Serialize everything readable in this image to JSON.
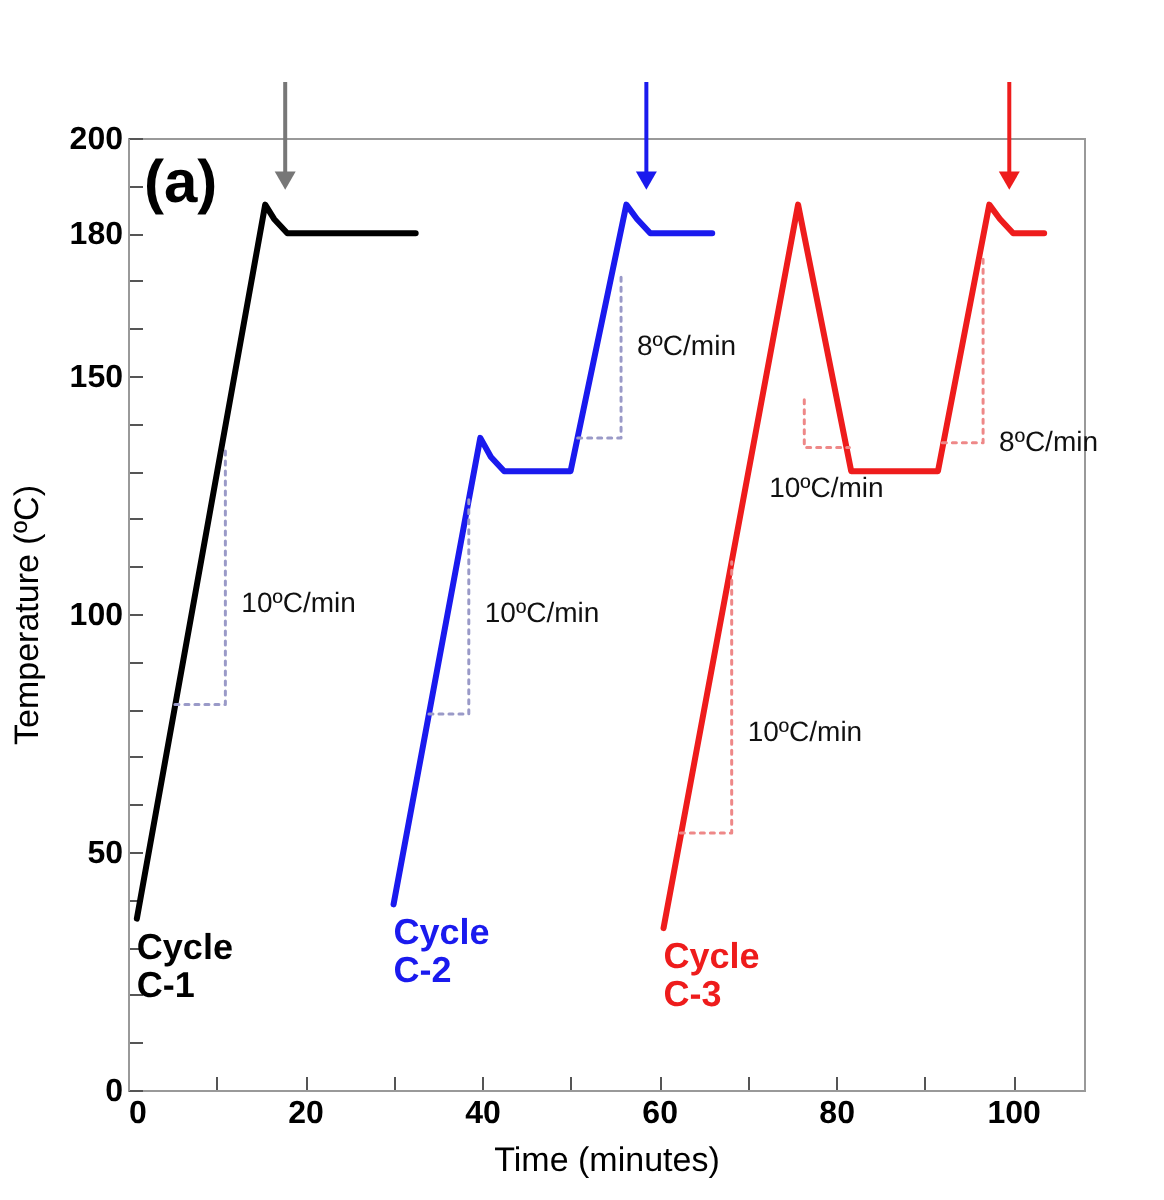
{
  "chart_data": {
    "type": "line",
    "xlabel": "Time (minutes)",
    "ylabel": "Temperature (ºC)",
    "xlim": [
      0,
      108
    ],
    "ylim": [
      0,
      200
    ],
    "xticks": [
      0,
      {
        "value": 10,
        "label": null
      },
      20,
      {
        "value": 30,
        "label": null
      },
      40,
      {
        "value": 50,
        "label": null
      },
      60,
      {
        "value": 70,
        "label": null
      },
      80,
      {
        "value": 90,
        "label": null
      },
      100
    ],
    "yticks": [
      0,
      {
        "value": 10,
        "label": null
      },
      {
        "value": 20,
        "label": null
      },
      {
        "value": 30,
        "label": null
      },
      {
        "value": 40,
        "label": null
      },
      50,
      {
        "value": 60,
        "label": null
      },
      {
        "value": 70,
        "label": null
      },
      {
        "value": 80,
        "label": null
      },
      {
        "value": 90,
        "label": null
      },
      100,
      {
        "value": 110,
        "label": null
      },
      {
        "value": 120,
        "label": null
      },
      {
        "value": 130,
        "label": null
      },
      {
        "value": 140,
        "label": null
      },
      150,
      {
        "value": 160,
        "label": null
      },
      {
        "value": 170,
        "label": null
      },
      180,
      {
        "value": 190,
        "label": null
      },
      200
    ],
    "marker": "none",
    "line_style": "solid",
    "series": [
      {
        "name": "Cycle C-1",
        "color": "#000000",
        "x": [
          1,
          15.5,
          16.5,
          18,
          32.5
        ],
        "values": [
          36,
          186,
          183,
          180,
          180
        ]
      },
      {
        "name": "Cycle C-2",
        "color": "#1a1aee",
        "x": [
          30,
          39.8,
          41,
          42.5,
          50,
          56.3,
          57.5,
          59,
          66
        ],
        "values": [
          39,
          137,
          133,
          130,
          130,
          186,
          183,
          180,
          180
        ]
      },
      {
        "name": "Cycle C-3",
        "color": "#ee1c1c",
        "x": [
          60.5,
          75.7,
          81.7,
          91.5,
          97.3,
          98.5,
          100,
          103.5
        ],
        "values": [
          34,
          186,
          130,
          130,
          186,
          183,
          180,
          180
        ]
      },
      {
        "color": "#9a9ac8",
        "line_style": "dotted",
        "x": [
          5.3,
          11,
          11
        ],
        "values": [
          81,
          81,
          135
        ]
      },
      {
        "color": "#9a9ac8",
        "line_style": "dotted",
        "x": [
          34,
          38.5,
          38.5
        ],
        "values": [
          79,
          79,
          124
        ]
      },
      {
        "color": "#9a9ac8",
        "line_style": "dotted",
        "x": [
          50.8,
          55.7,
          55.7
        ],
        "values": [
          137,
          137,
          172
        ]
      },
      {
        "color": "#ee8888",
        "line_style": "dotted",
        "x": [
          62.4,
          68.2,
          68.2
        ],
        "values": [
          54,
          54,
          111
        ]
      },
      {
        "color": "#ee8888",
        "line_style": "dotted",
        "x": [
          76.4,
          76.4,
          81.5
        ],
        "values": [
          145,
          135,
          135
        ]
      },
      {
        "color": "#ee8888",
        "line_style": "dotted",
        "x": [
          92,
          96.6,
          96.6
        ],
        "values": [
          136,
          136,
          175
        ]
      }
    ],
    "annotations": [
      "(a)",
      {
        "text": "10ºC/min",
        "x": 11,
        "y": 102
      },
      {
        "text": "10ºC/min",
        "x": 38.5,
        "y": 100
      },
      {
        "text": "8ºC/min",
        "x": 55.7,
        "y": 156
      },
      {
        "text": "10ºC/min",
        "x": 68.2,
        "y": 75
      },
      {
        "text": "10ºC/min",
        "x": 78.9,
        "y": 135
      },
      {
        "text": "8ºC/min",
        "x": 96.6,
        "y": 136
      }
    ]
  }
}
